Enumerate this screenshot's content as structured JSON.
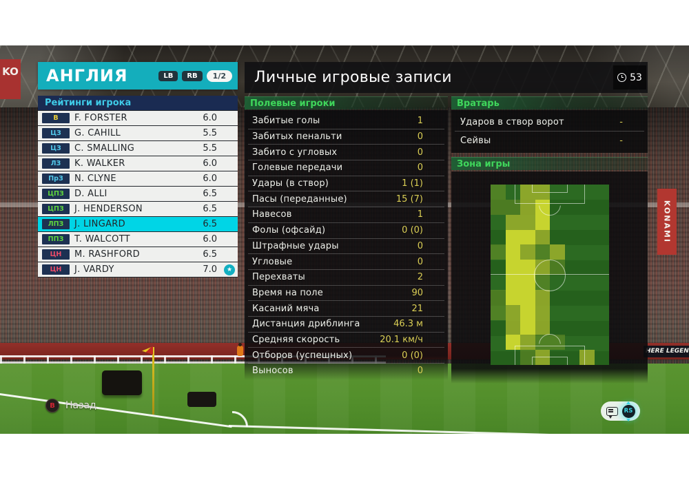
{
  "team_panel": {
    "title": "АНГЛИЯ",
    "lb_label": "LB",
    "rb_label": "RB",
    "page_indicator": "1/2",
    "section_title": "Рейтинги игрока",
    "players": [
      {
        "pos": "В",
        "pos_type": "gk",
        "name": "F. FORSTER",
        "rating": "6.0",
        "selected": false,
        "star": false
      },
      {
        "pos": "ЦЗ",
        "pos_type": "df",
        "name": "G. CAHILL",
        "rating": "5.5",
        "selected": false,
        "star": false
      },
      {
        "pos": "ЦЗ",
        "pos_type": "df",
        "name": "C. SMALLING",
        "rating": "5.5",
        "selected": false,
        "star": false
      },
      {
        "pos": "ЛЗ",
        "pos_type": "df",
        "name": "K. WALKER",
        "rating": "6.0",
        "selected": false,
        "star": false
      },
      {
        "pos": "ПрЗ",
        "pos_type": "df",
        "name": "N. CLYNE",
        "rating": "6.0",
        "selected": false,
        "star": false
      },
      {
        "pos": "ЦПЗ",
        "pos_type": "mf",
        "name": "D. ALLI",
        "rating": "6.5",
        "selected": false,
        "star": false
      },
      {
        "pos": "ЦПЗ",
        "pos_type": "mf",
        "name": "J. HENDERSON",
        "rating": "6.5",
        "selected": false,
        "star": false
      },
      {
        "pos": "ЛПЗ",
        "pos_type": "mf",
        "name": "J. LINGARD",
        "rating": "6.5",
        "selected": true,
        "star": false
      },
      {
        "pos": "ППЗ",
        "pos_type": "mf",
        "name": "T. WALCOTT",
        "rating": "6.0",
        "selected": false,
        "star": false
      },
      {
        "pos": "ЦН",
        "pos_type": "fw",
        "name": "M. RASHFORD",
        "rating": "6.5",
        "selected": false,
        "star": false
      },
      {
        "pos": "ЦН",
        "pos_type": "fw",
        "name": "J. VARDY",
        "rating": "7.0",
        "selected": false,
        "star": true
      }
    ]
  },
  "records_panel": {
    "title": "Личные игровые записи",
    "clock_value": "53",
    "outfield": {
      "title": "Полевые игроки",
      "stats": [
        {
          "label": "Забитые голы",
          "value": "1"
        },
        {
          "label": "Забитых пенальти",
          "value": "0"
        },
        {
          "label": "Забито с угловых",
          "value": "0"
        },
        {
          "label": "Голевые передачи",
          "value": "0"
        },
        {
          "label": "Удары (в створ)",
          "value": "1 (1)"
        },
        {
          "label": "Пасы (переданные)",
          "value": "15 (7)"
        },
        {
          "label": "Навесов",
          "value": "1"
        },
        {
          "label": "Фолы (офсайд)",
          "value": "0 (0)"
        },
        {
          "label": "Штрафные удары",
          "value": "0"
        },
        {
          "label": "Угловые",
          "value": "0"
        },
        {
          "label": "Перехваты",
          "value": "2"
        },
        {
          "label": "Время на поле",
          "value": "90"
        },
        {
          "label": "Касаний мяча",
          "value": "21"
        },
        {
          "label": "Дистанция дриблинга",
          "value": "46.3 м"
        },
        {
          "label": "Средняя скорость",
          "value": "20.1 км/ч"
        },
        {
          "label": "Отборов (успешных)",
          "value": "0 (0)"
        },
        {
          "label": "Выносов",
          "value": "0"
        }
      ]
    },
    "goalkeeper": {
      "title": "Вратарь",
      "stats": [
        {
          "label": "Ударов в створ ворот",
          "value": "-"
        },
        {
          "label": "Сейвы",
          "value": "-"
        }
      ]
    },
    "zone": {
      "title": "Зона игры",
      "heatmap": {
        "cols": 8,
        "rows": 12,
        "levels": [
          [
            1,
            0,
            2,
            2,
            0,
            0,
            0,
            0
          ],
          [
            1,
            1,
            2,
            3,
            0,
            0,
            0,
            0
          ],
          [
            0,
            2,
            2,
            3,
            0,
            0,
            0,
            0
          ],
          [
            0,
            3,
            3,
            2,
            0,
            0,
            0,
            0
          ],
          [
            1,
            3,
            2,
            1,
            2,
            0,
            0,
            0
          ],
          [
            0,
            3,
            3,
            2,
            1,
            0,
            0,
            0
          ],
          [
            0,
            3,
            3,
            1,
            0,
            0,
            0,
            0
          ],
          [
            1,
            3,
            3,
            2,
            0,
            0,
            0,
            0
          ],
          [
            1,
            2,
            3,
            2,
            0,
            0,
            0,
            0
          ],
          [
            0,
            2,
            3,
            2,
            0,
            0,
            0,
            0
          ],
          [
            0,
            3,
            2,
            1,
            1,
            0,
            0,
            0
          ],
          [
            0,
            0,
            1,
            2,
            0,
            0,
            2,
            0
          ]
        ],
        "level_colors": {
          "1": "#82a22a",
          "2": "#9eb02c",
          "3": "#ced830"
        }
      }
    }
  },
  "footer": {
    "back_button": "B",
    "back_label": "Назад",
    "stick_label": "RS"
  },
  "scene": {
    "left_sign": "KO",
    "side_banner": "KONAMI",
    "board_text": "HERE LEGEND"
  },
  "colors": {
    "accent_teal": "#14aebc",
    "selection_cyan": "#00d5e6",
    "ratings_bar_blue": "#1a2b52",
    "section_green": "#3fd65b",
    "stat_value_yellow": "#dbcf55"
  }
}
